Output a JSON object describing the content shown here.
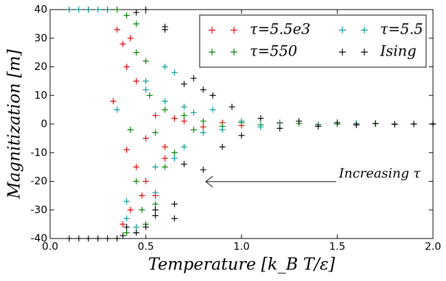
{
  "chart_data": {
    "type": "scatter",
    "x_label": "Temperature [k_B T/ε]",
    "y_label": "Magnitization [m]",
    "annotation": "Increasing τ",
    "xlim": [
      0,
      2
    ],
    "ylim": [
      -40,
      40
    ],
    "xticks": [
      {
        "value": 0,
        "label": "0.0"
      },
      0.5,
      {
        "value": 1,
        "label": "1.0"
      },
      1.5,
      {
        "value": 2,
        "label": "2.0"
      }
    ],
    "yticks": [
      -40,
      -30,
      -20,
      -10,
      0,
      10,
      20,
      30,
      40
    ],
    "legend": "upper right",
    "series": [
      {
        "name": "τ=5.5e3",
        "color": "#e00000",
        "x": [
          0.1,
          0.2,
          0.3,
          0.35,
          0.38,
          0.4,
          0.42,
          0.45,
          0.5,
          0.55,
          0.6,
          0.65,
          0.7,
          0.8,
          0.9,
          1.0,
          1.2,
          1.4,
          1.6,
          1.8,
          2.0,
          0.33,
          0.4,
          0.45,
          0.5,
          0.55,
          0.6,
          0.38,
          0.42,
          0.48
        ],
        "values": [
          40,
          40,
          40,
          33,
          28,
          20,
          30,
          15,
          -5,
          3,
          -8,
          2,
          1,
          -1,
          0.5,
          -0.5,
          0.3,
          -0.2,
          0.1,
          0,
          0,
          8,
          -9,
          -15,
          -20,
          -25,
          -12,
          -35,
          -30,
          -25
        ]
      },
      {
        "name": "τ=550",
        "color": "#008000",
        "x": [
          0.35,
          0.4,
          0.45,
          0.5,
          0.52,
          0.55,
          0.6,
          0.65,
          0.7,
          0.75,
          0.8,
          0.9,
          1.0,
          1.1,
          1.3,
          1.5,
          1.7,
          1.9,
          0.42,
          0.45,
          0.48,
          0.5,
          0.55,
          0.6,
          0.4,
          0.45
        ],
        "values": [
          40,
          38,
          35,
          22,
          10,
          -3,
          5,
          -10,
          3,
          -2,
          1,
          -0.8,
          0.5,
          -0.3,
          0.2,
          0,
          0.1,
          0,
          -2,
          -20,
          -30,
          -35,
          -28,
          -15,
          -38,
          25
        ]
      },
      {
        "name": "τ=5.5",
        "color": "#009a9a",
        "x": [
          0.1,
          0.15,
          0.2,
          0.25,
          0.3,
          0.35,
          0.4,
          0.45,
          0.5,
          0.55,
          0.6,
          0.65,
          0.7,
          0.75,
          0.8,
          0.85,
          0.9,
          1.0,
          1.1,
          1.2,
          1.4,
          1.6,
          1.8,
          2.0,
          0.4,
          0.45,
          0.5,
          0.55,
          0.6,
          0.65,
          0.7
        ],
        "values": [
          40,
          40,
          40,
          40,
          40,
          5,
          -27,
          -38,
          15,
          -24,
          8,
          18,
          -8,
          4,
          -3,
          5,
          -2,
          1,
          -1,
          0.5,
          -0.3,
          0.2,
          -0.1,
          0,
          -33,
          -36,
          12,
          -15,
          20,
          -12,
          6
        ]
      },
      {
        "name": "Ising",
        "color": "#000000",
        "x": [
          0.1,
          0.15,
          0.2,
          0.25,
          0.3,
          0.35,
          0.4,
          0.45,
          0.5,
          0.55,
          0.6,
          0.65,
          0.7,
          0.75,
          0.8,
          0.85,
          0.9,
          0.95,
          1.0,
          1.1,
          1.2,
          1.3,
          1.4,
          1.5,
          1.6,
          1.7,
          1.8,
          1.9,
          2.0,
          0.45,
          0.5,
          0.55,
          0.6,
          0.65,
          0.7,
          0.8,
          0.38
        ],
        "values": [
          -40,
          -40,
          -40,
          -40,
          -40,
          -40,
          -36,
          -38,
          40,
          -30,
          33,
          -33,
          14,
          16,
          -16,
          10,
          -8,
          6,
          -4,
          2,
          -1.5,
          1,
          -0.8,
          0.5,
          -0.3,
          0.2,
          -0.1,
          0,
          0,
          39,
          -36,
          -32,
          34,
          -28,
          -14,
          12,
          -39
        ]
      }
    ]
  }
}
